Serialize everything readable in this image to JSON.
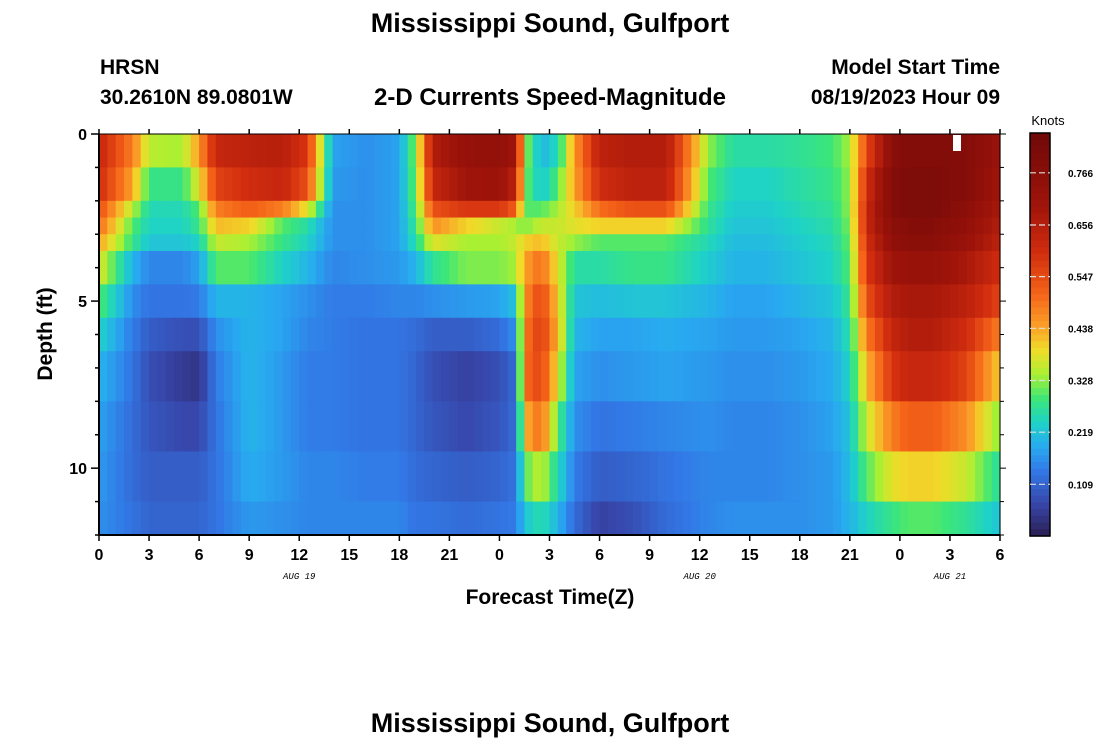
{
  "header": {
    "title": "Mississippi Sound, Gulfport",
    "station": "HRSN",
    "coordinates": "30.2610N  89.0801W",
    "subtitle": "2-D Currents Speed-Magnitude",
    "model_start_label": "Model Start Time",
    "model_start_value": "08/19/2023 Hour 09",
    "repeat_title": "Mississippi Sound, Gulfport"
  },
  "chart_data": {
    "type": "heatmap",
    "title": "Mississippi Sound, Gulfport",
    "subtitle": "2-D Currents Speed-Magnitude",
    "xlabel": "Forecast Time(Z)",
    "ylabel": "Depth (ft)",
    "x_tick_labels": [
      "0",
      "3",
      "6",
      "9",
      "12",
      "15",
      "18",
      "21",
      "0",
      "3",
      "6",
      "9",
      "12",
      "15",
      "18",
      "21",
      "0",
      "3",
      "6"
    ],
    "date_labels": [
      {
        "label": "AUG 19",
        "hour": 12
      },
      {
        "label": "AUG 20",
        "hour": 36
      },
      {
        "label": "AUG 21",
        "hour": 51
      }
    ],
    "x_range_hours": [
      0,
      54
    ],
    "y_ticks": [
      0,
      5,
      10
    ],
    "y_range_ft": [
      0,
      12
    ],
    "depth_layer_bounds_ft": [
      0,
      1,
      2,
      2.5,
      3,
      3.5,
      4.5,
      5.5,
      6.5,
      8,
      9.5,
      11,
      12
    ],
    "colorbar": {
      "unit": "Knots",
      "ticks": [
        "0.766",
        "0.656",
        "0.547",
        "0.438",
        "0.328",
        "0.219",
        "0.109"
      ],
      "tick_values": [
        0.766,
        0.656,
        0.547,
        0.438,
        0.328,
        0.219,
        0.109
      ],
      "range": [
        0.0,
        0.85
      ]
    },
    "speed_keyframes_knots": {
      "hours": [
        0,
        2,
        3,
        5,
        6,
        7,
        9,
        11,
        12.5,
        14,
        16,
        18,
        19,
        20,
        22,
        24,
        25,
        25.5,
        26.5,
        27.5,
        28.5,
        30,
        32,
        34,
        36.5,
        38,
        40,
        42,
        44,
        45,
        46,
        47.5,
        48.5,
        50,
        52,
        54
      ],
      "depth_ft": [
        0.5,
        1.5,
        2.25,
        2.75,
        3.25,
        4.0,
        5.0,
        6.0,
        7.25,
        8.75,
        10.25,
        11.5
      ],
      "rows": [
        [
          0.62,
          0.48,
          0.35,
          0.34,
          0.45,
          0.62,
          0.64,
          0.65,
          0.58,
          0.18,
          0.16,
          0.18,
          0.33,
          0.66,
          0.73,
          0.74,
          0.7,
          0.34,
          0.2,
          0.25,
          0.45,
          0.64,
          0.66,
          0.66,
          0.33,
          0.26,
          0.26,
          0.27,
          0.29,
          0.34,
          0.55,
          0.76,
          0.79,
          0.79,
          0.78,
          0.72
        ],
        [
          0.6,
          0.44,
          0.28,
          0.28,
          0.38,
          0.56,
          0.6,
          0.62,
          0.54,
          0.17,
          0.16,
          0.18,
          0.32,
          0.62,
          0.7,
          0.71,
          0.64,
          0.32,
          0.22,
          0.3,
          0.44,
          0.6,
          0.64,
          0.64,
          0.3,
          0.24,
          0.24,
          0.26,
          0.28,
          0.33,
          0.6,
          0.78,
          0.8,
          0.8,
          0.78,
          0.7
        ],
        [
          0.54,
          0.35,
          0.25,
          0.25,
          0.3,
          0.48,
          0.52,
          0.48,
          0.38,
          0.16,
          0.16,
          0.18,
          0.3,
          0.54,
          0.58,
          0.58,
          0.52,
          0.3,
          0.3,
          0.34,
          0.4,
          0.5,
          0.54,
          0.54,
          0.28,
          0.23,
          0.23,
          0.25,
          0.27,
          0.33,
          0.62,
          0.78,
          0.8,
          0.8,
          0.76,
          0.68
        ],
        [
          0.5,
          0.3,
          0.24,
          0.24,
          0.28,
          0.42,
          0.4,
          0.3,
          0.26,
          0.16,
          0.16,
          0.18,
          0.28,
          0.46,
          0.4,
          0.36,
          0.34,
          0.32,
          0.36,
          0.36,
          0.38,
          0.4,
          0.4,
          0.4,
          0.27,
          0.22,
          0.22,
          0.24,
          0.26,
          0.32,
          0.62,
          0.76,
          0.78,
          0.78,
          0.74,
          0.66
        ],
        [
          0.44,
          0.28,
          0.22,
          0.22,
          0.24,
          0.36,
          0.34,
          0.28,
          0.24,
          0.16,
          0.16,
          0.18,
          0.26,
          0.38,
          0.34,
          0.34,
          0.36,
          0.4,
          0.42,
          0.36,
          0.33,
          0.3,
          0.3,
          0.3,
          0.25,
          0.21,
          0.21,
          0.23,
          0.25,
          0.31,
          0.6,
          0.74,
          0.76,
          0.76,
          0.72,
          0.64
        ],
        [
          0.38,
          0.2,
          0.15,
          0.15,
          0.18,
          0.3,
          0.3,
          0.24,
          0.2,
          0.15,
          0.16,
          0.17,
          0.2,
          0.27,
          0.32,
          0.32,
          0.34,
          0.44,
          0.5,
          0.38,
          0.26,
          0.26,
          0.28,
          0.28,
          0.23,
          0.2,
          0.2,
          0.22,
          0.24,
          0.3,
          0.58,
          0.7,
          0.72,
          0.72,
          0.68,
          0.6
        ],
        [
          0.3,
          0.16,
          0.13,
          0.13,
          0.14,
          0.2,
          0.2,
          0.18,
          0.16,
          0.14,
          0.14,
          0.15,
          0.15,
          0.16,
          0.17,
          0.18,
          0.22,
          0.46,
          0.56,
          0.4,
          0.22,
          0.21,
          0.22,
          0.22,
          0.2,
          0.18,
          0.18,
          0.2,
          0.22,
          0.28,
          0.54,
          0.66,
          0.68,
          0.68,
          0.64,
          0.56
        ],
        [
          0.24,
          0.14,
          0.1,
          0.08,
          0.08,
          0.16,
          0.2,
          0.18,
          0.15,
          0.14,
          0.13,
          0.13,
          0.12,
          0.1,
          0.1,
          0.12,
          0.16,
          0.48,
          0.58,
          0.42,
          0.2,
          0.18,
          0.18,
          0.19,
          0.18,
          0.17,
          0.17,
          0.18,
          0.2,
          0.26,
          0.48,
          0.62,
          0.66,
          0.66,
          0.6,
          0.48
        ],
        [
          0.2,
          0.13,
          0.08,
          0.05,
          0.04,
          0.14,
          0.2,
          0.17,
          0.14,
          0.14,
          0.13,
          0.13,
          0.11,
          0.08,
          0.06,
          0.08,
          0.12,
          0.5,
          0.56,
          0.38,
          0.18,
          0.16,
          0.17,
          0.18,
          0.17,
          0.16,
          0.16,
          0.17,
          0.19,
          0.24,
          0.42,
          0.58,
          0.62,
          0.62,
          0.56,
          0.4
        ],
        [
          0.18,
          0.12,
          0.09,
          0.07,
          0.07,
          0.13,
          0.2,
          0.17,
          0.14,
          0.14,
          0.13,
          0.13,
          0.11,
          0.09,
          0.07,
          0.09,
          0.12,
          0.42,
          0.5,
          0.3,
          0.16,
          0.13,
          0.14,
          0.15,
          0.16,
          0.15,
          0.15,
          0.16,
          0.18,
          0.22,
          0.36,
          0.48,
          0.52,
          0.52,
          0.46,
          0.32
        ],
        [
          0.17,
          0.12,
          0.1,
          0.1,
          0.1,
          0.13,
          0.19,
          0.17,
          0.15,
          0.15,
          0.14,
          0.14,
          0.12,
          0.11,
          0.1,
          0.11,
          0.13,
          0.3,
          0.36,
          0.25,
          0.14,
          0.1,
          0.11,
          0.13,
          0.15,
          0.15,
          0.15,
          0.16,
          0.17,
          0.21,
          0.3,
          0.38,
          0.4,
          0.4,
          0.36,
          0.26
        ],
        [
          0.16,
          0.13,
          0.11,
          0.11,
          0.11,
          0.13,
          0.17,
          0.16,
          0.15,
          0.15,
          0.15,
          0.15,
          0.13,
          0.13,
          0.12,
          0.13,
          0.14,
          0.22,
          0.26,
          0.2,
          0.12,
          0.06,
          0.08,
          0.12,
          0.15,
          0.16,
          0.16,
          0.16,
          0.17,
          0.2,
          0.24,
          0.28,
          0.3,
          0.3,
          0.27,
          0.22
        ]
      ]
    },
    "grid": false
  }
}
